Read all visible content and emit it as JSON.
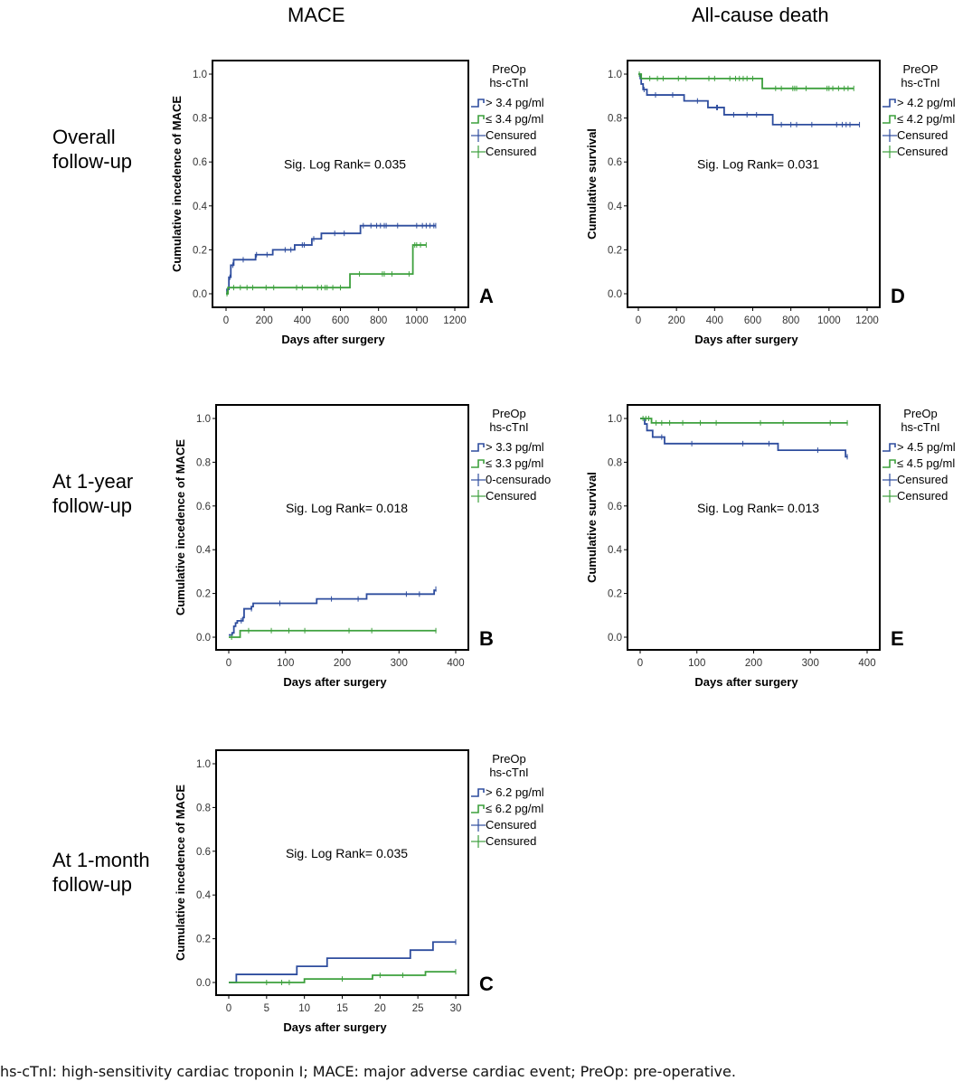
{
  "column_titles": [
    "MACE",
    "All-cause death"
  ],
  "row_titles": [
    [
      "Overall",
      "follow-up"
    ],
    [
      "At 1-year",
      "follow-up"
    ],
    [
      "At 1-month",
      "follow-up"
    ]
  ],
  "caption": "hs-cTnI: high-sensitivity cardiac troponin I; MACE: major adverse cardiac event; PreOp: pre-operative.",
  "colors": {
    "high": "#2E4D9E",
    "low": "#3DA03D",
    "axis": "#000000"
  },
  "chart_data": [
    {
      "id": "A",
      "type": "line",
      "subtype": "kaplan-meier-step",
      "panel_letter": "A",
      "xlabel": "Days after surgery",
      "ylabel": "Cumulative incedence of MACE",
      "xlim": [
        0,
        1200
      ],
      "ylim": [
        0,
        1.0
      ],
      "xticks": [
        0,
        200,
        400,
        600,
        800,
        1000,
        1200
      ],
      "yticks": [
        "0.0",
        "0.2",
        "0.4",
        "0.6",
        "0.8",
        "1.0"
      ],
      "annotation": "Sig. Log Rank= 0.035",
      "legend_title": [
        "PreOp",
        "hs-cTnI"
      ],
      "legend_position": "right",
      "legend": [
        "> 3.4 pg/ml",
        "≤ 3.4 pg/ml",
        "Censured",
        "Censured"
      ],
      "series": [
        {
          "name": "> 3.4 pg/ml",
          "color_key": "high",
          "steps": [
            [
              0,
              0.0
            ],
            [
              5,
              0.02
            ],
            [
              15,
              0.075
            ],
            [
              25,
              0.13
            ],
            [
              40,
              0.155
            ],
            [
              155,
              0.178
            ],
            [
              245,
              0.2
            ],
            [
              360,
              0.222
            ],
            [
              450,
              0.25
            ],
            [
              500,
              0.275
            ],
            [
              705,
              0.31
            ]
          ],
          "end": 1100,
          "censored": [
            [
              20,
              0.075
            ],
            [
              35,
              0.13
            ],
            [
              90,
              0.155
            ],
            [
              160,
              0.178
            ],
            [
              215,
              0.178
            ],
            [
              310,
              0.2
            ],
            [
              340,
              0.2
            ],
            [
              400,
              0.222
            ],
            [
              410,
              0.222
            ],
            [
              460,
              0.25
            ],
            [
              570,
              0.275
            ],
            [
              620,
              0.275
            ],
            [
              720,
              0.31
            ],
            [
              760,
              0.31
            ],
            [
              790,
              0.31
            ],
            [
              810,
              0.31
            ],
            [
              830,
              0.31
            ],
            [
              840,
              0.31
            ],
            [
              900,
              0.31
            ],
            [
              1000,
              0.31
            ],
            [
              1030,
              0.31
            ],
            [
              1050,
              0.31
            ],
            [
              1070,
              0.31
            ],
            [
              1090,
              0.31
            ],
            [
              1100,
              0.31
            ]
          ]
        },
        {
          "name": "≤ 3.4 pg/ml",
          "color_key": "low",
          "steps": [
            [
              0,
              0.0
            ],
            [
              10,
              0.028
            ],
            [
              650,
              0.09
            ],
            [
              980,
              0.222
            ]
          ],
          "end": 1050,
          "censored": [
            [
              5,
              0.0
            ],
            [
              40,
              0.028
            ],
            [
              75,
              0.028
            ],
            [
              110,
              0.028
            ],
            [
              140,
              0.028
            ],
            [
              210,
              0.028
            ],
            [
              250,
              0.028
            ],
            [
              370,
              0.028
            ],
            [
              400,
              0.028
            ],
            [
              480,
              0.028
            ],
            [
              500,
              0.028
            ],
            [
              520,
              0.028
            ],
            [
              530,
              0.028
            ],
            [
              560,
              0.028
            ],
            [
              600,
              0.028
            ],
            [
              700,
              0.09
            ],
            [
              820,
              0.09
            ],
            [
              830,
              0.09
            ],
            [
              870,
              0.09
            ],
            [
              960,
              0.09
            ],
            [
              990,
              0.222
            ],
            [
              1000,
              0.222
            ],
            [
              1020,
              0.222
            ],
            [
              1050,
              0.222
            ]
          ]
        }
      ]
    },
    {
      "id": "D",
      "type": "line",
      "subtype": "kaplan-meier-step",
      "panel_letter": "D",
      "xlabel": "Days after surgery",
      "ylabel": "Cumulative survival",
      "xlim": [
        0,
        1200
      ],
      "ylim": [
        0,
        1.0
      ],
      "xticks": [
        0,
        200,
        400,
        600,
        800,
        1000,
        1200
      ],
      "yticks": [
        "0.0",
        "0.2",
        "0.4",
        "0.6",
        "0.8",
        "1.0"
      ],
      "annotation": "Sig. Log Rank= 0.031",
      "legend_title": [
        "PreOP",
        "hs-cTnI"
      ],
      "legend_position": "right",
      "legend": [
        "> 4.2 pg/ml",
        "≤ 4.2 pg/ml",
        "Censured",
        "Censured"
      ],
      "series": [
        {
          "name": "> 4.2 pg/ml",
          "color_key": "high",
          "steps": [
            [
              0,
              1.0
            ],
            [
              10,
              0.98
            ],
            [
              15,
              0.955
            ],
            [
              25,
              0.93
            ],
            [
              45,
              0.905
            ],
            [
              240,
              0.878
            ],
            [
              365,
              0.848
            ],
            [
              450,
              0.815
            ],
            [
              705,
              0.77
            ]
          ],
          "end": 1160,
          "censored": [
            [
              30,
              0.93
            ],
            [
              90,
              0.905
            ],
            [
              180,
              0.905
            ],
            [
              310,
              0.878
            ],
            [
              410,
              0.848
            ],
            [
              415,
              0.848
            ],
            [
              500,
              0.815
            ],
            [
              570,
              0.815
            ],
            [
              620,
              0.815
            ],
            [
              750,
              0.77
            ],
            [
              800,
              0.77
            ],
            [
              830,
              0.77
            ],
            [
              910,
              0.77
            ],
            [
              1040,
              0.77
            ],
            [
              1070,
              0.77
            ],
            [
              1090,
              0.77
            ],
            [
              1110,
              0.77
            ],
            [
              1160,
              0.77
            ]
          ]
        },
        {
          "name": "≤ 4.2 pg/ml",
          "color_key": "low",
          "steps": [
            [
              0,
              1.0
            ],
            [
              15,
              0.98
            ],
            [
              650,
              0.935
            ]
          ],
          "end": 1130,
          "censored": [
            [
              5,
              1.0
            ],
            [
              60,
              0.98
            ],
            [
              100,
              0.98
            ],
            [
              130,
              0.98
            ],
            [
              210,
              0.98
            ],
            [
              250,
              0.98
            ],
            [
              370,
              0.98
            ],
            [
              400,
              0.98
            ],
            [
              480,
              0.98
            ],
            [
              510,
              0.98
            ],
            [
              530,
              0.98
            ],
            [
              550,
              0.98
            ],
            [
              570,
              0.98
            ],
            [
              600,
              0.98
            ],
            [
              720,
              0.935
            ],
            [
              750,
              0.935
            ],
            [
              810,
              0.935
            ],
            [
              820,
              0.935
            ],
            [
              830,
              0.935
            ],
            [
              880,
              0.935
            ],
            [
              990,
              0.935
            ],
            [
              1000,
              0.935
            ],
            [
              1020,
              0.935
            ],
            [
              1050,
              0.935
            ],
            [
              1080,
              0.935
            ],
            [
              1100,
              0.935
            ],
            [
              1130,
              0.935
            ]
          ]
        }
      ]
    },
    {
      "id": "B",
      "type": "line",
      "subtype": "kaplan-meier-step",
      "panel_letter": "B",
      "xlabel": "Days after surgery",
      "ylabel": "Cumulative incedence of MACE",
      "xlim": [
        0,
        400
      ],
      "ylim": [
        0,
        1.0
      ],
      "xticks": [
        0,
        100,
        200,
        300,
        400
      ],
      "yticks": [
        "0.0",
        "0.2",
        "0.4",
        "0.6",
        "0.8",
        "1.0"
      ],
      "annotation": "Sig. Log Rank= 0.018",
      "legend_title": [
        "PreOp",
        "hs-cTnI"
      ],
      "legend_position": "right",
      "legend": [
        "> 3.3 pg/ml",
        "≤ 3.3 pg/ml",
        "0-censurado",
        "Censured"
      ],
      "series": [
        {
          "name": "> 3.3 pg/ml",
          "color_key": "high",
          "steps": [
            [
              0,
              0.01
            ],
            [
              6,
              0.02
            ],
            [
              9,
              0.05
            ],
            [
              12,
              0.065
            ],
            [
              15,
              0.075
            ],
            [
              25,
              0.09
            ],
            [
              27,
              0.13
            ],
            [
              40,
              0.14
            ],
            [
              43,
              0.155
            ],
            [
              155,
              0.175
            ],
            [
              243,
              0.197
            ],
            [
              362,
              0.215
            ]
          ],
          "end": 366,
          "censored": [
            [
              22,
              0.075
            ],
            [
              40,
              0.13
            ],
            [
              90,
              0.155
            ],
            [
              181,
              0.175
            ],
            [
              228,
              0.175
            ],
            [
              313,
              0.197
            ],
            [
              336,
              0.197
            ],
            [
              365,
              0.22
            ]
          ]
        },
        {
          "name": "≤ 3.3 pg/ml",
          "color_key": "low",
          "steps": [
            [
              0,
              0.0
            ],
            [
              20,
              0.03
            ]
          ],
          "end": 366,
          "censored": [
            [
              5,
              0.0
            ],
            [
              35,
              0.03
            ],
            [
              75,
              0.03
            ],
            [
              106,
              0.03
            ],
            [
              134,
              0.03
            ],
            [
              212,
              0.03
            ],
            [
              252,
              0.03
            ],
            [
              365,
              0.03
            ]
          ]
        }
      ]
    },
    {
      "id": "E",
      "type": "line",
      "subtype": "kaplan-meier-step",
      "panel_letter": "E",
      "xlabel": "Days after surgery",
      "ylabel": "Cumulative survival",
      "xlim": [
        0,
        400
      ],
      "ylim": [
        0,
        1.0
      ],
      "xticks": [
        0,
        100,
        200,
        300,
        400
      ],
      "yticks": [
        "0.0",
        "0.2",
        "0.4",
        "0.6",
        "0.8",
        "1.0"
      ],
      "annotation": "Sig. Log Rank= 0.013",
      "legend_title": [
        "PreOp",
        "hs-cTnI"
      ],
      "legend_position": "right",
      "legend": [
        "> 4.5 pg/ml",
        "≤ 4.5 pg/ml",
        "Censured",
        "Censured"
      ],
      "series": [
        {
          "name": "> 4.5 pg/ml",
          "color_key": "high",
          "steps": [
            [
              0,
              1.0
            ],
            [
              8,
              0.975
            ],
            [
              12,
              0.945
            ],
            [
              22,
              0.915
            ],
            [
              43,
              0.885
            ],
            [
              243,
              0.855
            ],
            [
              362,
              0.825
            ]
          ],
          "end": 366,
          "censored": [
            [
              38,
              0.915
            ],
            [
              91,
              0.885
            ],
            [
              181,
              0.885
            ],
            [
              227,
              0.885
            ],
            [
              313,
              0.855
            ],
            [
              365,
              0.825
            ]
          ]
        },
        {
          "name": "≤ 4.5 pg/ml",
          "color_key": "low",
          "steps": [
            [
              0,
              1.0
            ],
            [
              20,
              0.98
            ]
          ],
          "end": 366,
          "censored": [
            [
              5,
              1.0
            ],
            [
              10,
              1.0
            ],
            [
              15,
              1.0
            ],
            [
              28,
              0.98
            ],
            [
              38,
              0.98
            ],
            [
              52,
              0.98
            ],
            [
              75,
              0.98
            ],
            [
              106,
              0.98
            ],
            [
              134,
              0.98
            ],
            [
              212,
              0.98
            ],
            [
              252,
              0.98
            ],
            [
              335,
              0.98
            ],
            [
              365,
              0.98
            ]
          ]
        }
      ]
    },
    {
      "id": "C",
      "type": "line",
      "subtype": "kaplan-meier-step",
      "panel_letter": "C",
      "xlabel": "Days after surgery",
      "ylabel": "Cumulative incedence of MACE",
      "xlim": [
        0,
        30
      ],
      "ylim": [
        0,
        1.0
      ],
      "xticks": [
        0,
        5,
        10,
        15,
        20,
        25,
        30
      ],
      "yticks": [
        "0.0",
        "0.2",
        "0.4",
        "0.6",
        "0.8",
        "1.0"
      ],
      "annotation": "Sig. Log Rank= 0.035",
      "legend_title": [
        "PreOp",
        "hs-cTnI"
      ],
      "legend_position": "right",
      "legend": [
        "> 6.2 pg/ml",
        "≤ 6.2 pg/ml",
        "Censured",
        "Censured"
      ],
      "series": [
        {
          "name": "> 6.2 pg/ml",
          "color_key": "high",
          "steps": [
            [
              0,
              0.0
            ],
            [
              1,
              0.037
            ],
            [
              9,
              0.074
            ],
            [
              13,
              0.111
            ],
            [
              24,
              0.148
            ],
            [
              27,
              0.185
            ]
          ],
          "end": 30,
          "censored": [
            [
              30,
              0.185
            ]
          ]
        },
        {
          "name": "≤ 6.2 pg/ml",
          "color_key": "low",
          "steps": [
            [
              0,
              0.0
            ],
            [
              10,
              0.016
            ],
            [
              19,
              0.033
            ],
            [
              26,
              0.049
            ]
          ],
          "end": 30,
          "censored": [
            [
              5,
              0.0
            ],
            [
              7,
              0.0
            ],
            [
              8,
              0.0
            ],
            [
              15,
              0.016
            ],
            [
              20,
              0.033
            ],
            [
              23,
              0.033
            ],
            [
              30,
              0.049
            ]
          ]
        }
      ]
    }
  ]
}
